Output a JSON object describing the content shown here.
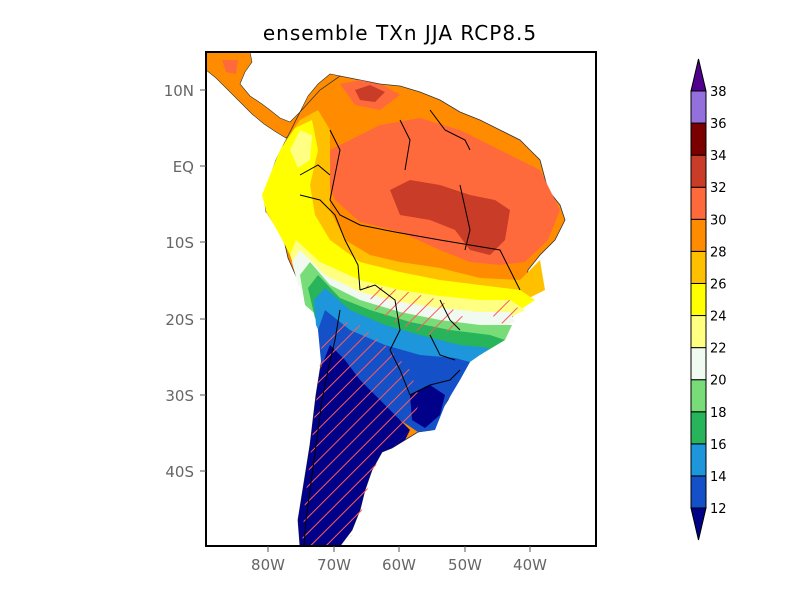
{
  "title": "ensemble TXn JJA RCP8.5",
  "map": {
    "lat_labels": [
      "10N",
      "EQ",
      "10S",
      "20S",
      "30S",
      "40S"
    ],
    "lat_values": [
      10,
      0,
      -10,
      -20,
      -30,
      -40
    ],
    "lon_labels": [
      "80W",
      "70W",
      "60W",
      "50W",
      "40W"
    ],
    "lon_values": [
      -80,
      -70,
      -60,
      -50,
      -40
    ],
    "lon_range": [
      -90,
      -30
    ],
    "lat_range": [
      -50,
      15
    ],
    "hatch_color": "#ff5a5a"
  },
  "colorbar": {
    "labels": [
      "12",
      "14",
      "16",
      "18",
      "20",
      "22",
      "24",
      "26",
      "28",
      "30",
      "32",
      "34",
      "36",
      "38"
    ],
    "levels": [
      12,
      14,
      16,
      18,
      20,
      22,
      24,
      26,
      28,
      30,
      32,
      34,
      36,
      38
    ],
    "colors": [
      "#000088",
      "#1450c8",
      "#1e96dc",
      "#28b45a",
      "#78dc78",
      "#f0faf0",
      "#ffff82",
      "#ffff00",
      "#ffc000",
      "#ff8c00",
      "#ff6a3c",
      "#c83c28",
      "#7a0000",
      "#9470dc",
      "#50008c"
    ]
  }
}
